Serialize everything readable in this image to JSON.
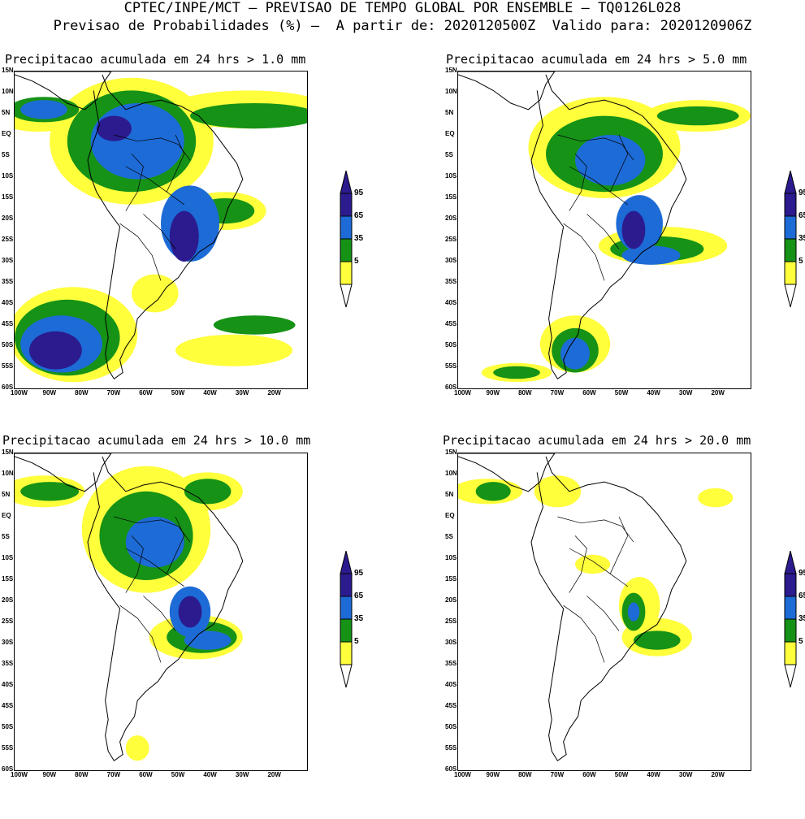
{
  "header": {
    "line1": "CPTEC/INPE/MCT – PREVISAO DE TEMPO GLOBAL POR ENSEMBLE – TQ0126L028",
    "line2": "Previsao de Probabilidades (%) –  A partir de: 2020120500Z  Valido para: 2020120906Z"
  },
  "axes": {
    "lat_labels": [
      "15N",
      "10N",
      "5N",
      "EQ",
      "5S",
      "10S",
      "15S",
      "20S",
      "25S",
      "30S",
      "35S",
      "40S",
      "45S",
      "50S",
      "55S",
      "60S"
    ],
    "lon_labels": [
      "100W",
      "90W",
      "80W",
      "70W",
      "60W",
      "50W",
      "40W",
      "30W",
      "20W"
    ]
  },
  "legend": {
    "labels": [
      "95",
      "65",
      "35",
      "5"
    ],
    "colors": [
      "#2b1b8e",
      "#1d6bd6",
      "#169216",
      "#ffff3c"
    ]
  },
  "panels": [
    {
      "title": "Precipitacao acumulada em 24 hrs > 1.0 mm"
    },
    {
      "title": "Precipitacao acumulada em 24 hrs > 5.0 mm"
    },
    {
      "title": "Precipitacao acumulada em 24 hrs > 10.0 mm"
    },
    {
      "title": "Precipitacao acumulada em 24 hrs > 20.0 mm"
    }
  ]
}
